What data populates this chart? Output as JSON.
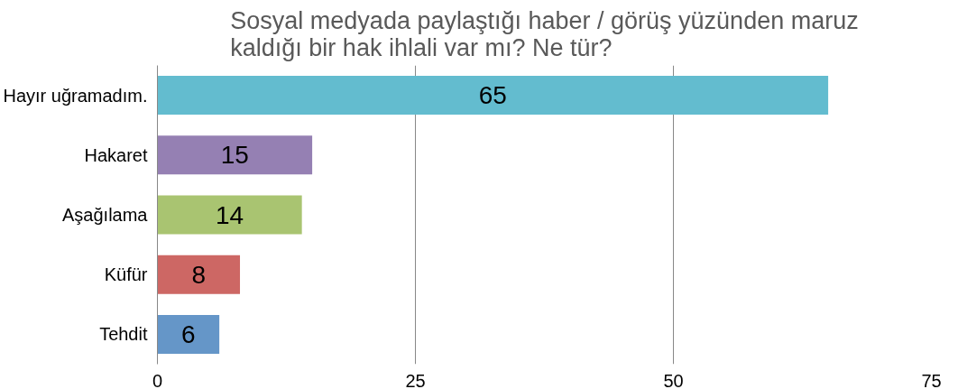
{
  "chart_data": {
    "type": "bar",
    "orientation": "horizontal",
    "title": "Sosyal medyada paylaştığı haber / görüş yüzünden maruz kaldığı bir hak ihlali var mı? Ne tür?",
    "categories": [
      "Hayır uğramadım.",
      "Hakaret",
      "Aşağılama",
      "Küfür",
      "Tehdit"
    ],
    "values": [
      65,
      15,
      14,
      8,
      6
    ],
    "colors": [
      "#63bccf",
      "#9580b3",
      "#a9c471",
      "#cd6764",
      "#6596c8"
    ],
    "xlim": [
      0,
      75
    ],
    "xticks": [
      0,
      25,
      50,
      75
    ],
    "grid": "x",
    "data_labels": true
  }
}
